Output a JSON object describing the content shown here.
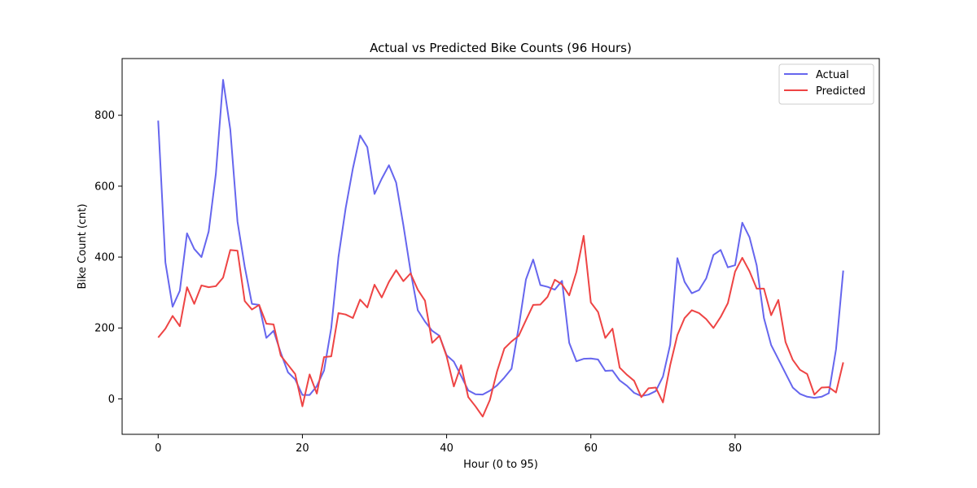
{
  "chart_data": {
    "type": "line",
    "title": "Actual vs Predicted Bike Counts (96 Hours)",
    "xlabel": "Hour (0 to 95)",
    "ylabel": "Bike Count (cnt)",
    "xlim": [
      -5,
      100
    ],
    "ylim": [
      -100,
      960
    ],
    "xticks": [
      0,
      20,
      40,
      60,
      80
    ],
    "yticks": [
      0,
      200,
      400,
      600,
      800
    ],
    "grid": false,
    "legend_position": "top-right",
    "series": [
      {
        "name": "Actual",
        "color": "#6666ee",
        "values": [
          785,
          385,
          260,
          305,
          467,
          423,
          400,
          472,
          635,
          900,
          760,
          500,
          373,
          268,
          265,
          172,
          192,
          130,
          75,
          55,
          11,
          11,
          36,
          80,
          200,
          400,
          538,
          650,
          743,
          710,
          578,
          621,
          659,
          610,
          490,
          360,
          250,
          218,
          192,
          178,
          123,
          105,
          65,
          24,
          13,
          12,
          23,
          38,
          60,
          85,
          203,
          337,
          393,
          321,
          316,
          308,
          333,
          158,
          106,
          113,
          114,
          111,
          79,
          80,
          52,
          37,
          17,
          8,
          12,
          22,
          63,
          153,
          397,
          330,
          298,
          307,
          340,
          406,
          420,
          371,
          377,
          497,
          456,
          376,
          228,
          152,
          112,
          72,
          32,
          14,
          6,
          3,
          6,
          16,
          140,
          362
        ]
      },
      {
        "name": "Predicted",
        "color": "#ee4444",
        "values": [
          173,
          198,
          234,
          205,
          315,
          268,
          320,
          315,
          318,
          342,
          420,
          418,
          276,
          252,
          265,
          212,
          210,
          122,
          96,
          70,
          -21,
          69,
          15,
          118,
          120,
          242,
          238,
          228,
          280,
          258,
          322,
          286,
          330,
          363,
          332,
          354,
          308,
          277,
          158,
          178,
          120,
          35,
          95,
          5,
          -21,
          -50,
          -3,
          78,
          142,
          162,
          178,
          222,
          265,
          266,
          288,
          336,
          323,
          292,
          358,
          460,
          272,
          245,
          172,
          198,
          88,
          68,
          51,
          5,
          30,
          32,
          -10,
          95,
          180,
          228,
          250,
          242,
          225,
          200,
          231,
          270,
          359,
          398,
          360,
          311,
          311,
          236,
          279,
          160,
          110,
          82,
          70,
          12,
          32,
          33,
          18,
          103
        ]
      }
    ]
  }
}
